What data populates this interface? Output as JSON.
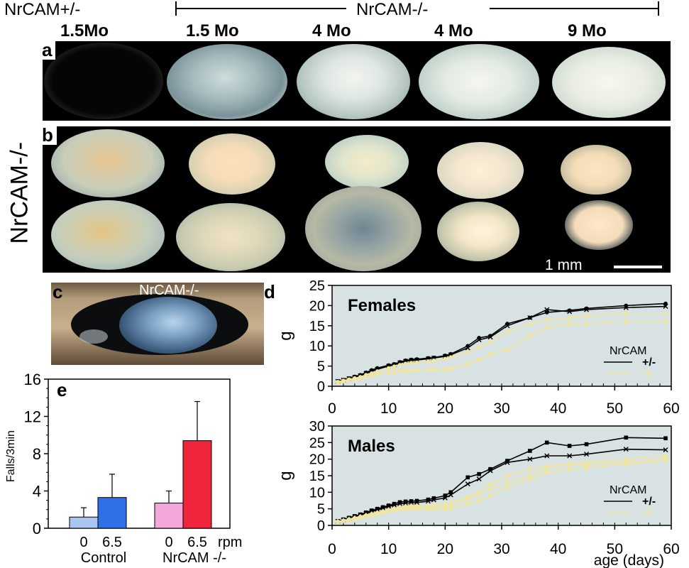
{
  "header": {
    "het_label": "NrCAM+/-",
    "ko_label": "NrCAM-/-",
    "ages": [
      "1.5Mo",
      "1.5 Mo",
      "4 Mo",
      "4 Mo",
      "9 Mo"
    ]
  },
  "panels": {
    "a": {
      "letter": "a"
    },
    "b": {
      "letter": "b",
      "side_label": "NrCAM-/-",
      "scale_bar": "1 mm"
    },
    "c": {
      "letter": "c",
      "label": "NrCAM-/-"
    },
    "d": {
      "letter": "d"
    },
    "e": {
      "letter": "e"
    }
  },
  "colors": {
    "plot_bg": "#d9e2e2",
    "het_line": "#000000",
    "ko_line": "#f0e6a0",
    "bar_control_0": "#a9c6f2",
    "bar_control_65": "#2f6fe8",
    "bar_ko_0": "#f2a8d8",
    "bar_ko_65": "#f0243a"
  },
  "chart_data": [
    {
      "type": "line",
      "title": "Females",
      "ylabel": "g",
      "xlabel": "",
      "xlim": [
        0,
        60
      ],
      "ylim": [
        0,
        25
      ],
      "xticks": [
        0,
        10,
        20,
        30,
        40,
        50,
        60
      ],
      "yticks": [
        0,
        5,
        10,
        15,
        20,
        25
      ],
      "legend": {
        "title": "NrCAM",
        "entries": [
          "+/-",
          "-/-"
        ],
        "placement": "right"
      },
      "grid": false,
      "series": [
        {
          "name": "+/-",
          "color": "#000000",
          "marker": "circle",
          "x": [
            1,
            2,
            3,
            4,
            5,
            6,
            7,
            8,
            10,
            11,
            12,
            13,
            14,
            15,
            17,
            18,
            20,
            21,
            24,
            26,
            28,
            31,
            35,
            38,
            42,
            45,
            52,
            59
          ],
          "y": [
            1.3,
            1.6,
            2.0,
            2.4,
            2.8,
            3.4,
            4.0,
            4.5,
            5.2,
            5.5,
            6.0,
            6.4,
            6.6,
            6.7,
            7.0,
            7.1,
            7.6,
            8.0,
            10.0,
            12.0,
            12.5,
            15.5,
            17.0,
            18.3,
            18.8,
            19.3,
            20.0,
            20.5
          ]
        },
        {
          "name": "+/-",
          "color": "#000000",
          "marker": "x",
          "x": [
            1,
            2,
            3,
            4,
            5,
            6,
            7,
            8,
            10,
            11,
            12,
            13,
            14,
            15,
            17,
            18,
            20,
            21,
            24,
            26,
            28,
            31,
            35,
            38,
            42,
            45,
            52,
            59
          ],
          "y": [
            1.2,
            1.5,
            1.9,
            2.2,
            2.6,
            3.2,
            3.7,
            4.2,
            5.0,
            5.3,
            5.8,
            6.2,
            6.4,
            6.5,
            6.8,
            7.0,
            7.4,
            7.8,
            9.5,
            11.5,
            12.2,
            15.0,
            17.0,
            19.0,
            18.5,
            19.0,
            19.5,
            19.8
          ]
        },
        {
          "name": "-/-",
          "color": "#f0e6a0",
          "marker": "circle",
          "x": [
            1,
            2,
            3,
            4,
            5,
            6,
            7,
            8,
            10,
            11,
            12,
            13,
            14,
            15,
            17,
            18,
            20,
            21,
            24,
            26,
            28,
            31,
            35,
            38,
            42,
            45,
            52,
            59
          ],
          "y": [
            1.1,
            1.4,
            1.7,
            2.0,
            2.3,
            2.8,
            3.2,
            3.7,
            4.5,
            4.9,
            5.3,
            5.6,
            5.8,
            5.9,
            6.2,
            6.4,
            6.8,
            7.2,
            8.5,
            9.8,
            11.0,
            13.5,
            15.5,
            16.5,
            17.0,
            17.5,
            18.0,
            18.0
          ]
        },
        {
          "name": "-/-",
          "color": "#f0e6a0",
          "marker": "square",
          "x": [
            1,
            2,
            3,
            4,
            5,
            6,
            7,
            8,
            10,
            11,
            12,
            13,
            14,
            15,
            17,
            18,
            20,
            21,
            24,
            26,
            28,
            31,
            35,
            38,
            42,
            45,
            52,
            59
          ],
          "y": [
            1.0,
            1.2,
            1.5,
            1.7,
            2.0,
            2.4,
            2.7,
            3.0,
            3.3,
            3.5,
            3.7,
            3.8,
            3.9,
            4.0,
            4.0,
            4.1,
            4.2,
            4.3,
            5.5,
            6.5,
            8.0,
            9.0,
            12.5,
            14.5,
            15.5,
            15.5,
            16.0,
            16.0
          ]
        }
      ]
    },
    {
      "type": "line",
      "title": "Males",
      "ylabel": "g",
      "xlabel": "age (days)",
      "xlim": [
        0,
        60
      ],
      "ylim": [
        0,
        30
      ],
      "xticks": [
        0,
        10,
        20,
        30,
        40,
        50,
        60
      ],
      "yticks": [
        0,
        5,
        10,
        15,
        20,
        25,
        30
      ],
      "legend": {
        "title": "NrCAM",
        "entries": [
          "+/-",
          "-/-"
        ],
        "placement": "right"
      },
      "grid": false,
      "series": [
        {
          "name": "+/-",
          "color": "#000000",
          "marker": "square",
          "x": [
            1,
            2,
            3,
            4,
            5,
            6,
            7,
            8,
            9,
            10,
            11,
            12,
            13,
            14,
            15,
            17,
            18,
            20,
            21,
            24,
            26,
            28,
            31,
            35,
            38,
            42,
            45,
            52,
            59
          ],
          "y": [
            1.3,
            1.8,
            2.3,
            2.8,
            3.3,
            3.9,
            4.5,
            5.0,
            5.5,
            6.0,
            6.5,
            7.0,
            7.2,
            7.3,
            7.4,
            7.8,
            8.2,
            9.0,
            10.0,
            14.5,
            15.5,
            17.0,
            19.5,
            22.5,
            25.0,
            24.0,
            24.5,
            26.5,
            26.3
          ]
        },
        {
          "name": "+/-",
          "color": "#000000",
          "marker": "x",
          "x": [
            1,
            2,
            3,
            4,
            5,
            6,
            7,
            8,
            9,
            10,
            11,
            12,
            13,
            14,
            15,
            17,
            18,
            20,
            21,
            24,
            26,
            28,
            31,
            35,
            38,
            42,
            45,
            52,
            59
          ],
          "y": [
            1.2,
            1.6,
            2.1,
            2.6,
            3.1,
            3.6,
            4.2,
            4.7,
            5.2,
            5.7,
            6.1,
            6.5,
            6.7,
            6.8,
            6.9,
            7.3,
            7.7,
            8.3,
            9.2,
            12.5,
            14.0,
            16.5,
            19.0,
            20.0,
            21.0,
            21.0,
            21.5,
            23.0,
            22.8
          ]
        },
        {
          "name": "-/-",
          "color": "#f0e6a0",
          "marker": "circle",
          "x": [
            1,
            2,
            3,
            4,
            5,
            6,
            7,
            8,
            9,
            10,
            11,
            12,
            13,
            14,
            15,
            17,
            18,
            20,
            21,
            24,
            26,
            28,
            31,
            35,
            38,
            42,
            45,
            52,
            59
          ],
          "y": [
            1.1,
            1.4,
            1.8,
            2.2,
            2.6,
            3.0,
            3.4,
            3.8,
            4.2,
            4.6,
            5.0,
            5.3,
            5.4,
            5.5,
            5.5,
            5.6,
            5.7,
            5.8,
            6.0,
            8.0,
            9.5,
            11.0,
            13.0,
            15.0,
            17.5,
            18.5,
            19.0,
            20.0,
            21.0
          ]
        },
        {
          "name": "-/-",
          "color": "#f0e6a0",
          "marker": "square",
          "x": [
            1,
            2,
            3,
            4,
            5,
            6,
            7,
            8,
            9,
            10,
            11,
            12,
            13,
            14,
            15,
            17,
            18,
            20,
            21,
            24,
            26,
            28,
            31,
            35,
            38,
            42,
            45,
            52,
            59
          ],
          "y": [
            1.0,
            1.3,
            1.6,
            1.9,
            2.3,
            2.7,
            3.1,
            3.5,
            3.9,
            4.3,
            4.6,
            4.8,
            4.9,
            5.0,
            5.0,
            5.0,
            5.0,
            5.0,
            5.0,
            6.5,
            7.5,
            9.0,
            11.5,
            14.0,
            16.0,
            17.0,
            17.5,
            18.5,
            19.5
          ]
        },
        {
          "name": "-/-",
          "color": "#f0e6a0",
          "marker": "diamond",
          "x": [
            1,
            2,
            3,
            4,
            5,
            6,
            7,
            8,
            9,
            10,
            11,
            12,
            13,
            14,
            15,
            17,
            18,
            20,
            21,
            24,
            26,
            28,
            31,
            35,
            38,
            42,
            45,
            52,
            59
          ],
          "y": [
            1.2,
            1.5,
            1.9,
            2.3,
            2.7,
            3.1,
            3.5,
            3.9,
            4.3,
            4.8,
            5.2,
            5.6,
            5.8,
            6.0,
            6.0,
            6.1,
            6.2,
            6.4,
            6.8,
            8.5,
            10.0,
            12.5,
            15.0,
            17.0,
            18.0,
            18.5,
            18.5,
            19.0,
            20.0
          ]
        }
      ]
    },
    {
      "type": "bar",
      "ylabel": "Falls/3min",
      "ylim": [
        0,
        16
      ],
      "yticks": [
        0,
        4,
        8,
        12,
        16
      ],
      "tick_labels": [
        "0",
        "6.5",
        "0",
        "6.5"
      ],
      "rpm_label": "rpm",
      "group_labels": [
        "Control",
        "NrCAM -/-"
      ],
      "categories": [
        "Control 0",
        "Control 6.5",
        "NrCAM -/- 0",
        "NrCAM -/- 6.5"
      ],
      "values": [
        1.2,
        3.3,
        2.7,
        9.4
      ],
      "errors": [
        1.0,
        2.5,
        1.3,
        4.2
      ],
      "colors": [
        "#a9c6f2",
        "#2f6fe8",
        "#f2a8d8",
        "#f0243a"
      ],
      "grid": false
    }
  ]
}
